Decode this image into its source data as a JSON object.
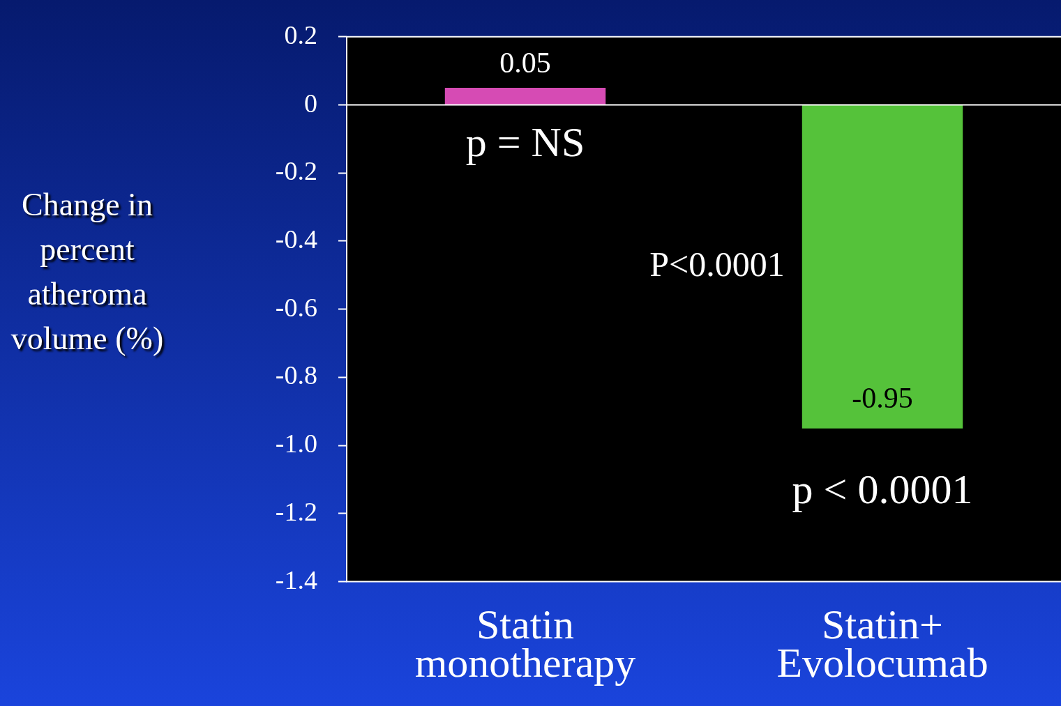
{
  "chart_data": {
    "type": "bar",
    "ylabel": "Change in percent atheroma volume (%)",
    "categories": [
      "Statin monotherapy",
      "Statin+ Evolocumab"
    ],
    "values": [
      0.05,
      -0.95
    ],
    "colors": [
      "#d64bb4",
      "#55c23a"
    ],
    "ylim": [
      -1.4,
      0.2
    ],
    "yticks": [
      0.2,
      0,
      {
        "value": -0.2,
        "label": "-0.2"
      },
      {
        "value": -0.4,
        "label": "-0.4"
      },
      {
        "value": -0.6,
        "label": "-0.6"
      },
      {
        "value": -0.8,
        "label": "-0.8"
      },
      {
        "value": -1,
        "label": "-1.0"
      },
      {
        "value": -1.2,
        "label": "-1.2"
      },
      {
        "value": -1.4,
        "label": "-1.4"
      }
    ],
    "grid": false,
    "legend": false,
    "data_labels": true,
    "ref_lines": [
      {
        "axis": "y",
        "value": 0,
        "color": "#ffffff"
      }
    ],
    "annotations": [
      "p = NS",
      "P<0.0001",
      "p < 0.0001"
    ]
  }
}
